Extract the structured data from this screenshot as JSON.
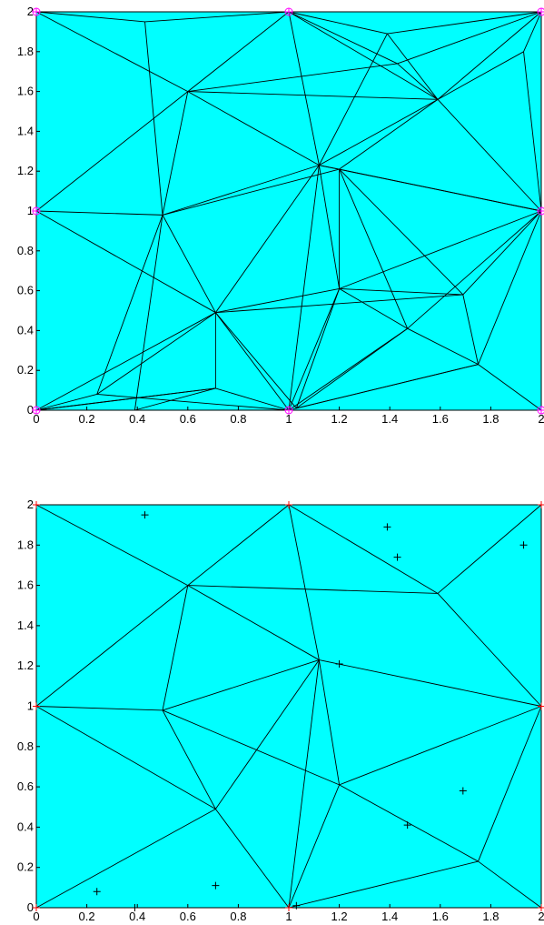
{
  "colors": {
    "background": "#00FFFF",
    "edge": "#000000",
    "boundary_marker": "#FF00FF",
    "corner_marker": "#FF0000",
    "point_marker": "#000000"
  },
  "chart_data": [
    {
      "type": "triangulation",
      "title": "",
      "xlabel": "",
      "ylabel": "",
      "xlim": [
        0,
        2
      ],
      "ylim": [
        0,
        2
      ],
      "xticks": [
        "0",
        "0.2",
        "0.4",
        "0.6",
        "0.8",
        "1",
        "1.2",
        "1.4",
        "1.6",
        "1.8",
        "2"
      ],
      "yticks": [
        "0",
        "0.2",
        "0.4",
        "0.6",
        "0.8",
        "1",
        "1.2",
        "1.4",
        "1.6",
        "1.8",
        "2"
      ],
      "grid": false,
      "nodes": [
        [
          0,
          0
        ],
        [
          1,
          0
        ],
        [
          2,
          0
        ],
        [
          2,
          1
        ],
        [
          2,
          2
        ],
        [
          1,
          2
        ],
        [
          0,
          2
        ],
        [
          0,
          1
        ],
        [
          0.6,
          1.6
        ],
        [
          0.5,
          0.98
        ],
        [
          0.71,
          0.49
        ],
        [
          1.12,
          1.23
        ],
        [
          1.2,
          0.61
        ],
        [
          1.59,
          1.56
        ],
        [
          1.75,
          0.23
        ],
        [
          1.2,
          1.21
        ],
        [
          1.47,
          0.41
        ],
        [
          1.69,
          0.58
        ],
        [
          1.43,
          1.74
        ],
        [
          1.39,
          1.89
        ],
        [
          1.93,
          1.8
        ],
        [
          0.43,
          1.95
        ],
        [
          0.24,
          0.08
        ],
        [
          0.71,
          0.11
        ],
        [
          0.39,
          0.0
        ],
        [
          1.03,
          0.01
        ]
      ],
      "edges": [
        [
          0,
          1
        ],
        [
          1,
          2
        ],
        [
          2,
          3
        ],
        [
          3,
          4
        ],
        [
          4,
          5
        ],
        [
          5,
          6
        ],
        [
          6,
          7
        ],
        [
          7,
          0
        ],
        [
          6,
          8
        ],
        [
          8,
          5
        ],
        [
          7,
          8
        ],
        [
          7,
          9
        ],
        [
          8,
          9
        ],
        [
          7,
          10
        ],
        [
          0,
          10
        ],
        [
          9,
          10
        ],
        [
          10,
          1
        ],
        [
          8,
          11
        ],
        [
          5,
          11
        ],
        [
          9,
          11
        ],
        [
          10,
          11
        ],
        [
          11,
          1
        ],
        [
          11,
          12
        ],
        [
          10,
          12
        ],
        [
          12,
          1
        ],
        [
          12,
          3
        ],
        [
          11,
          3
        ],
        [
          3,
          13
        ],
        [
          13,
          4
        ],
        [
          5,
          13
        ],
        [
          8,
          13
        ],
        [
          11,
          13
        ],
        [
          12,
          16
        ],
        [
          16,
          3
        ],
        [
          16,
          14
        ],
        [
          14,
          3
        ],
        [
          14,
          2
        ],
        [
          1,
          14
        ],
        [
          16,
          1
        ],
        [
          12,
          17
        ],
        [
          17,
          3
        ],
        [
          17,
          14
        ],
        [
          15,
          13
        ],
        [
          15,
          3
        ],
        [
          15,
          11
        ],
        [
          15,
          12
        ],
        [
          15,
          16
        ],
        [
          18,
          13
        ],
        [
          18,
          4
        ],
        [
          18,
          5
        ],
        [
          19,
          5
        ],
        [
          19,
          13
        ],
        [
          19,
          4
        ],
        [
          20,
          4
        ],
        [
          20,
          3
        ],
        [
          20,
          13
        ],
        [
          21,
          6
        ],
        [
          21,
          9
        ],
        [
          21,
          5
        ],
        [
          22,
          0
        ],
        [
          22,
          9
        ],
        [
          22,
          10
        ],
        [
          22,
          1
        ],
        [
          23,
          10
        ],
        [
          23,
          1
        ],
        [
          23,
          0
        ],
        [
          24,
          9
        ],
        [
          24,
          23
        ],
        [
          25,
          14
        ],
        [
          25,
          12
        ],
        [
          25,
          10
        ],
        [
          8,
          18
        ],
        [
          11,
          19
        ],
        [
          15,
          17
        ],
        [
          16,
          25
        ],
        [
          10,
          17
        ],
        [
          9,
          15
        ],
        [
          0,
          23
        ]
      ],
      "boundary_markers": [
        [
          0,
          0
        ],
        [
          1,
          0
        ],
        [
          2,
          0
        ],
        [
          2,
          1
        ],
        [
          2,
          2
        ],
        [
          1,
          2
        ],
        [
          0,
          2
        ],
        [
          0,
          1
        ]
      ]
    },
    {
      "type": "triangulation",
      "title": "",
      "xlabel": "",
      "ylabel": "",
      "xlim": [
        0,
        2
      ],
      "ylim": [
        0,
        2
      ],
      "xticks": [
        "0",
        "0.2",
        "0.4",
        "0.6",
        "0.8",
        "1",
        "1.2",
        "1.4",
        "1.6",
        "1.8",
        "2"
      ],
      "yticks": [
        "0",
        "0.2",
        "0.4",
        "0.6",
        "0.8",
        "1",
        "1.2",
        "1.4",
        "1.6",
        "1.8",
        "2"
      ],
      "grid": false,
      "nodes": [
        [
          0,
          0
        ],
        [
          1,
          0
        ],
        [
          2,
          0
        ],
        [
          2,
          1
        ],
        [
          2,
          2
        ],
        [
          1,
          2
        ],
        [
          0,
          2
        ],
        [
          0,
          1
        ],
        [
          0.6,
          1.6
        ],
        [
          0.5,
          0.98
        ],
        [
          0.71,
          0.49
        ],
        [
          1.12,
          1.23
        ],
        [
          1.2,
          0.61
        ],
        [
          1.59,
          1.56
        ],
        [
          1.75,
          0.23
        ]
      ],
      "edges": [
        [
          0,
          1
        ],
        [
          1,
          2
        ],
        [
          2,
          3
        ],
        [
          3,
          4
        ],
        [
          4,
          5
        ],
        [
          5,
          6
        ],
        [
          6,
          7
        ],
        [
          7,
          0
        ],
        [
          6,
          8
        ],
        [
          8,
          5
        ],
        [
          7,
          8
        ],
        [
          7,
          9
        ],
        [
          8,
          9
        ],
        [
          7,
          10
        ],
        [
          0,
          10
        ],
        [
          9,
          10
        ],
        [
          10,
          1
        ],
        [
          8,
          11
        ],
        [
          5,
          11
        ],
        [
          9,
          11
        ],
        [
          10,
          11
        ],
        [
          11,
          1
        ],
        [
          11,
          12
        ],
        [
          12,
          1
        ],
        [
          12,
          3
        ],
        [
          11,
          3
        ],
        [
          3,
          13
        ],
        [
          13,
          4
        ],
        [
          5,
          13
        ],
        [
          8,
          13
        ],
        [
          12,
          14
        ],
        [
          14,
          3
        ],
        [
          14,
          2
        ],
        [
          1,
          14
        ],
        [
          9,
          12
        ]
      ],
      "corner_markers": [
        [
          0,
          0
        ],
        [
          1,
          0
        ],
        [
          2,
          0
        ],
        [
          2,
          1
        ],
        [
          2,
          2
        ],
        [
          1,
          2
        ],
        [
          0,
          2
        ],
        [
          0,
          1
        ]
      ],
      "points": [
        [
          0.43,
          1.95
        ],
        [
          1.39,
          1.89
        ],
        [
          1.43,
          1.74
        ],
        [
          1.93,
          1.8
        ],
        [
          1.2,
          1.21
        ],
        [
          1.69,
          0.58
        ],
        [
          1.47,
          0.41
        ],
        [
          0.24,
          0.08
        ],
        [
          0.71,
          0.11
        ],
        [
          0.39,
          0.0
        ],
        [
          1.03,
          0.01
        ]
      ]
    }
  ]
}
